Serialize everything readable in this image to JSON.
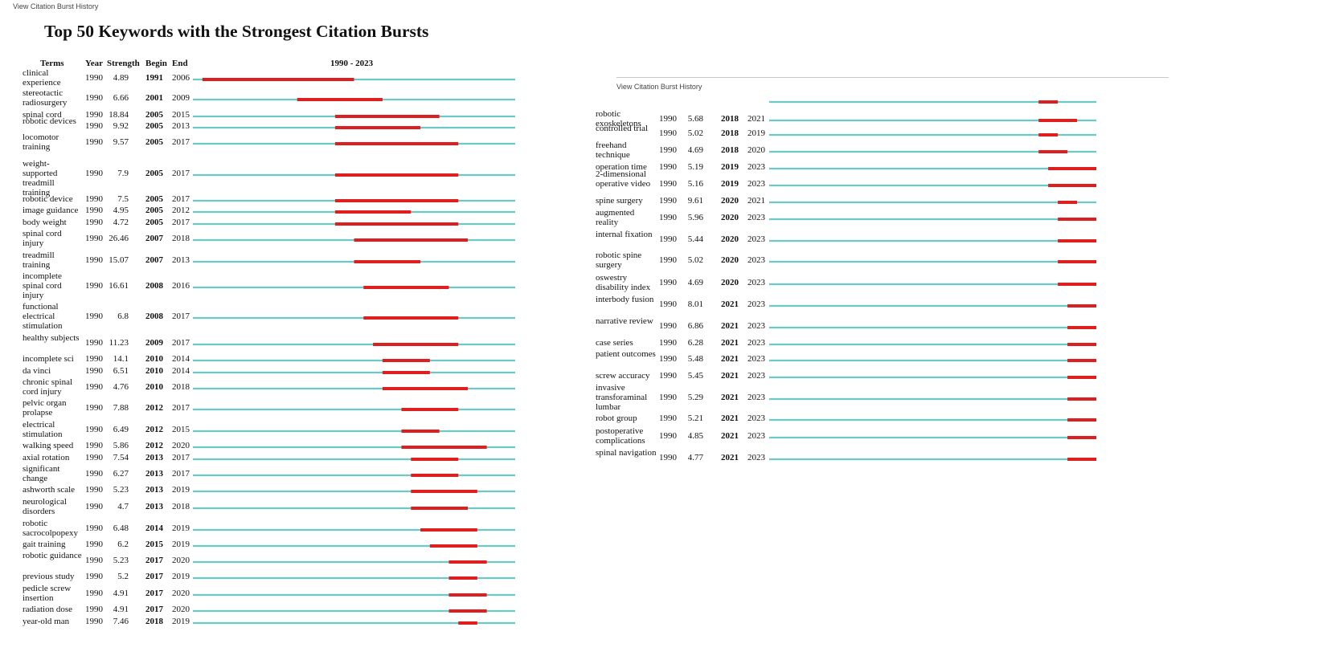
{
  "link_text": "View Citation Burst History",
  "chart_data": {
    "type": "timeline",
    "title": "Top 50 Keywords with the Strongest Citation Bursts",
    "columns": [
      "Terms",
      "Year",
      "Strength",
      "Begin",
      "End"
    ],
    "range_label": "1990 - 2023",
    "range": [
      1990,
      2023
    ],
    "colors": {
      "base": "#6cc9c6",
      "burst": "#dd1f1f"
    },
    "rows": [
      {
        "term": "clinical experience",
        "year": "1990",
        "strength": "4.89",
        "begin": "1991",
        "end": "2006"
      },
      {
        "term": "stereotactic radiosurgery",
        "year": "1990",
        "strength": "6.66",
        "begin": "2001",
        "end": "2009"
      },
      {
        "term": "spinal cord",
        "year": "1990",
        "strength": "18.84",
        "begin": "2005",
        "end": "2015"
      },
      {
        "term": "robotic devices",
        "year": "1990",
        "strength": "9.92",
        "begin": "2005",
        "end": "2013"
      },
      {
        "term": "locomotor training",
        "year": "1990",
        "strength": "9.57",
        "begin": "2005",
        "end": "2017"
      },
      {
        "term": "weight-supported treadmill training",
        "year": "1990",
        "strength": "7.9",
        "begin": "2005",
        "end": "2017"
      },
      {
        "term": "robotic device",
        "year": "1990",
        "strength": "7.5",
        "begin": "2005",
        "end": "2017"
      },
      {
        "term": "image guidance",
        "year": "1990",
        "strength": "4.95",
        "begin": "2005",
        "end": "2012"
      },
      {
        "term": "body weight",
        "year": "1990",
        "strength": "4.72",
        "begin": "2005",
        "end": "2017"
      },
      {
        "term": "spinal cord injury",
        "year": "1990",
        "strength": "26.46",
        "begin": "2007",
        "end": "2018"
      },
      {
        "term": "treadmill training",
        "year": "1990",
        "strength": "15.07",
        "begin": "2007",
        "end": "2013"
      },
      {
        "term": "incomplete spinal cord injury",
        "year": "1990",
        "strength": "16.61",
        "begin": "2008",
        "end": "2016"
      },
      {
        "term": "functional electrical stimulation",
        "year": "1990",
        "strength": "6.8",
        "begin": "2008",
        "end": "2017"
      },
      {
        "term": "healthy subjects",
        "year": "1990",
        "strength": "11.23",
        "begin": "2009",
        "end": "2017"
      },
      {
        "term": "incomplete sci",
        "year": "1990",
        "strength": "14.1",
        "begin": "2010",
        "end": "2014"
      },
      {
        "term": "da vinci",
        "year": "1990",
        "strength": "6.51",
        "begin": "2010",
        "end": "2014"
      },
      {
        "term": "chronic spinal cord injury",
        "year": "1990",
        "strength": "4.76",
        "begin": "2010",
        "end": "2018"
      },
      {
        "term": "pelvic organ prolapse",
        "year": "1990",
        "strength": "7.88",
        "begin": "2012",
        "end": "2017"
      },
      {
        "term": "electrical stimulation",
        "year": "1990",
        "strength": "6.49",
        "begin": "2012",
        "end": "2015"
      },
      {
        "term": "walking speed",
        "year": "1990",
        "strength": "5.86",
        "begin": "2012",
        "end": "2020"
      },
      {
        "term": "axial rotation",
        "year": "1990",
        "strength": "7.54",
        "begin": "2013",
        "end": "2017"
      },
      {
        "term": "significant change",
        "year": "1990",
        "strength": "6.27",
        "begin": "2013",
        "end": "2017"
      },
      {
        "term": "ashworth scale",
        "year": "1990",
        "strength": "5.23",
        "begin": "2013",
        "end": "2019"
      },
      {
        "term": "neurological disorders",
        "year": "1990",
        "strength": "4.7",
        "begin": "2013",
        "end": "2018"
      },
      {
        "term": "robotic sacrocolpopexy",
        "year": "1990",
        "strength": "6.48",
        "begin": "2014",
        "end": "2019"
      },
      {
        "term": "gait training",
        "year": "1990",
        "strength": "6.2",
        "begin": "2015",
        "end": "2019"
      },
      {
        "term": "robotic guidance",
        "year": "1990",
        "strength": "5.23",
        "begin": "2017",
        "end": "2020"
      },
      {
        "term": "previous study",
        "year": "1990",
        "strength": "5.2",
        "begin": "2017",
        "end": "2019"
      },
      {
        "term": "pedicle screw insertion",
        "year": "1990",
        "strength": "4.91",
        "begin": "2017",
        "end": "2020"
      },
      {
        "term": "radiation dose",
        "year": "1990",
        "strength": "4.91",
        "begin": "2017",
        "end": "2020"
      },
      {
        "term": "year-old man",
        "year": "1990",
        "strength": "7.46",
        "begin": "2018",
        "end": "2019"
      },
      {
        "term": "robotic exoskeletons",
        "year": "1990",
        "strength": "5.68",
        "begin": "2018",
        "end": "2021"
      },
      {
        "term": "controlled trial",
        "year": "1990",
        "strength": "5.02",
        "begin": "2018",
        "end": "2019"
      },
      {
        "term": "freehand technique",
        "year": "1990",
        "strength": "4.69",
        "begin": "2018",
        "end": "2020"
      },
      {
        "term": "operation time",
        "year": "1990",
        "strength": "5.19",
        "begin": "2019",
        "end": "2023"
      },
      {
        "term": "2-dimensional operative video",
        "year": "1990",
        "strength": "5.16",
        "begin": "2019",
        "end": "2023"
      },
      {
        "term": "spine surgery",
        "year": "1990",
        "strength": "9.61",
        "begin": "2020",
        "end": "2021"
      },
      {
        "term": "augmented reality",
        "year": "1990",
        "strength": "5.96",
        "begin": "2020",
        "end": "2023"
      },
      {
        "term": "internal fixation",
        "year": "1990",
        "strength": "5.44",
        "begin": "2020",
        "end": "2023"
      },
      {
        "term": "robotic spine surgery",
        "year": "1990",
        "strength": "5.02",
        "begin": "2020",
        "end": "2023"
      },
      {
        "term": "oswestry disability index",
        "year": "1990",
        "strength": "4.69",
        "begin": "2020",
        "end": "2023"
      },
      {
        "term": "interbody fusion",
        "year": "1990",
        "strength": "8.01",
        "begin": "2021",
        "end": "2023"
      },
      {
        "term": "narrative review",
        "year": "1990",
        "strength": "6.86",
        "begin": "2021",
        "end": "2023"
      },
      {
        "term": "case series",
        "year": "1990",
        "strength": "6.28",
        "begin": "2021",
        "end": "2023"
      },
      {
        "term": "patient outcomes",
        "year": "1990",
        "strength": "5.48",
        "begin": "2021",
        "end": "2023"
      },
      {
        "term": "screw accuracy",
        "year": "1990",
        "strength": "5.45",
        "begin": "2021",
        "end": "2023"
      },
      {
        "term": "invasive transforaminal lumbar",
        "year": "1990",
        "strength": "5.29",
        "begin": "2021",
        "end": "2023"
      },
      {
        "term": "robot group",
        "year": "1990",
        "strength": "5.21",
        "begin": "2021",
        "end": "2023"
      },
      {
        "term": "postoperative complications",
        "year": "1990",
        "strength": "4.85",
        "begin": "2021",
        "end": "2023"
      },
      {
        "term": "spinal navigation",
        "year": "1990",
        "strength": "4.77",
        "begin": "2021",
        "end": "2023"
      }
    ]
  }
}
